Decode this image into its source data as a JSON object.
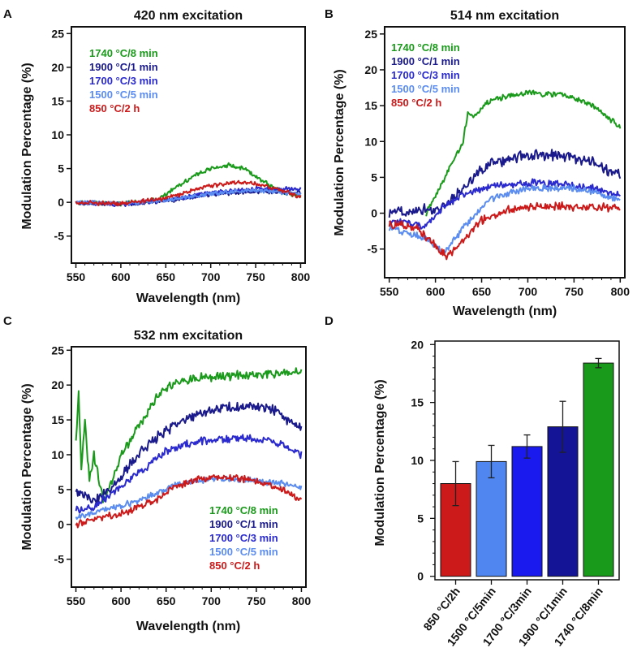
{
  "chart_data": [
    {
      "panel": "A",
      "type": "line",
      "title": "420 nm excitation",
      "xlabel": "Wavelength (nm)",
      "ylabel": "Modulation Percentage (%)",
      "xlim": [
        545,
        805
      ],
      "ylim": [
        -9,
        26
      ],
      "xticks": [
        550,
        600,
        650,
        700,
        750,
        800
      ],
      "yticks": [
        -5,
        0,
        5,
        10,
        15,
        20,
        25
      ],
      "legend": [
        "1740 °C/8 min",
        "1900 °C/1 min",
        "1700 °C/3 min",
        "1500 °C/5 min",
        "850 °C/2 h"
      ],
      "legend_position": "top-left",
      "series": [
        {
          "name": "1740 °C/8 min",
          "color": "#1a9a1a",
          "noise": 0.25,
          "x": [
            550,
            600,
            640,
            660,
            680,
            700,
            720,
            740,
            760,
            780,
            800
          ],
          "y": [
            0,
            -0.2,
            0.3,
            2.2,
            3.8,
            5.0,
            5.5,
            4.8,
            3.0,
            1.4,
            1.0
          ]
        },
        {
          "name": "1900 °C/1 min",
          "color": "#1a1a8c",
          "noise": 0.25,
          "x": [
            550,
            600,
            650,
            700,
            750,
            800
          ],
          "y": [
            0,
            -0.3,
            0.2,
            1.2,
            1.6,
            1.5
          ]
        },
        {
          "name": "1700 °C/3 min",
          "color": "#2a2acf",
          "noise": 0.25,
          "x": [
            550,
            600,
            650,
            700,
            750,
            800
          ],
          "y": [
            0,
            -0.3,
            0.3,
            1.4,
            2.0,
            2.0
          ]
        },
        {
          "name": "1500 °C/5 min",
          "color": "#5b8cf0",
          "noise": 0.25,
          "x": [
            550,
            600,
            650,
            700,
            750,
            800
          ],
          "y": [
            0,
            -0.2,
            0.3,
            1.3,
            1.8,
            1.2
          ]
        },
        {
          "name": "850 °C/2 h",
          "color": "#cc1a1a",
          "noise": 0.25,
          "x": [
            550,
            600,
            650,
            700,
            730,
            760,
            800
          ],
          "y": [
            0,
            -0.2,
            0.6,
            2.5,
            3.0,
            2.5,
            0.8
          ]
        }
      ]
    },
    {
      "panel": "B",
      "type": "line",
      "title": "514 nm excitation",
      "xlabel": "Wavelength (nm)",
      "ylabel": "Modulation Percentage (%)",
      "xlim": [
        545,
        805
      ],
      "ylim": [
        -9,
        26
      ],
      "xticks": [
        550,
        600,
        650,
        700,
        750,
        800
      ],
      "yticks": [
        -5,
        0,
        5,
        10,
        15,
        20,
        25
      ],
      "legend": [
        "1740 °C/8 min",
        "1900 °C/1 min",
        "1700 °C/3 min",
        "1500 °C/5 min",
        "850 °C/2 h"
      ],
      "legend_position": "top-left",
      "series": [
        {
          "name": "1740 °C/8 min",
          "color": "#1a9a1a",
          "noise": 0.3,
          "x": [
            590,
            610,
            630,
            635,
            640,
            660,
            700,
            740,
            770,
            800
          ],
          "y": [
            0,
            5,
            10,
            14,
            13.5,
            15.8,
            16.8,
            16.5,
            15.0,
            12.0
          ]
        },
        {
          "name": "1900 °C/1 min",
          "color": "#1a1a8c",
          "noise": 0.6,
          "x": [
            550,
            580,
            600,
            620,
            640,
            660,
            700,
            740,
            770,
            800
          ],
          "y": [
            0,
            0.6,
            0.5,
            2.0,
            5.0,
            7.0,
            8.1,
            8.0,
            7.0,
            5.2
          ]
        },
        {
          "name": "1700 °C/3 min",
          "color": "#2a2acf",
          "noise": 0.4,
          "x": [
            550,
            590,
            610,
            630,
            660,
            700,
            740,
            770,
            800
          ],
          "y": [
            -1.0,
            -1.8,
            1.0,
            2.5,
            3.8,
            4.2,
            4.0,
            3.5,
            2.6
          ]
        },
        {
          "name": "1500 °C/5 min",
          "color": "#5b8cf0",
          "noise": 0.35,
          "x": [
            550,
            590,
            610,
            630,
            660,
            700,
            750,
            800
          ],
          "y": [
            -2.0,
            -3.5,
            -5.5,
            -2.0,
            2.0,
            3.5,
            3.5,
            2.0
          ]
        },
        {
          "name": "850 °C/2 h",
          "color": "#cc1a1a",
          "noise": 0.45,
          "x": [
            550,
            580,
            600,
            612,
            625,
            650,
            680,
            720,
            800
          ],
          "y": [
            -1.5,
            -2.0,
            -4.5,
            -6.0,
            -4.5,
            -1.0,
            0.5,
            1.0,
            0.7
          ]
        }
      ]
    },
    {
      "panel": "C",
      "type": "line",
      "title": "532 nm excitation",
      "xlabel": "Wavelength (nm)",
      "ylabel": "Modulation Percentage (%)",
      "xlim": [
        545,
        805
      ],
      "ylim": [
        -9,
        25.5
      ],
      "xticks": [
        550,
        600,
        650,
        700,
        750,
        800
      ],
      "yticks": [
        -5,
        0,
        5,
        10,
        15,
        20,
        25
      ],
      "legend": [
        "1740 °C/8 min",
        "1900 °C/1 min",
        "1700 °C/3 min",
        "1500 °C/5 min",
        "850 °C/2 h"
      ],
      "legend_position": "bottom-right",
      "series": [
        {
          "name": "1740 °C/8 min",
          "color": "#1a9a1a",
          "noise": 0.5,
          "x": [
            550,
            553,
            556,
            560,
            565,
            570,
            580,
            590,
            600,
            620,
            640,
            660,
            700,
            750,
            800
          ],
          "y": [
            12,
            19,
            8,
            15,
            6,
            10,
            3.5,
            6,
            10,
            14,
            18.5,
            20.5,
            21.2,
            21.5,
            21.8
          ]
        },
        {
          "name": "1900 °C/1 min",
          "color": "#1a1a8c",
          "noise": 0.6,
          "x": [
            550,
            570,
            590,
            610,
            630,
            650,
            680,
            700,
            740,
            770,
            800
          ],
          "y": [
            5,
            3,
            5.5,
            8.5,
            11.5,
            13.5,
            15.5,
            16.5,
            17.0,
            16.5,
            13.5
          ]
        },
        {
          "name": "1700 °C/3 min",
          "color": "#2a2acf",
          "noise": 0.45,
          "x": [
            550,
            570,
            600,
            630,
            650,
            680,
            700,
            740,
            770,
            800
          ],
          "y": [
            2,
            2.5,
            5.5,
            8.5,
            10.5,
            11.8,
            12.2,
            12.4,
            12.0,
            10.0
          ]
        },
        {
          "name": "1500 °C/5 min",
          "color": "#5b8cf0",
          "noise": 0.35,
          "x": [
            550,
            580,
            610,
            640,
            660,
            700,
            750,
            800
          ],
          "y": [
            1.0,
            2.0,
            3.0,
            4.5,
            5.8,
            6.5,
            6.3,
            5.5
          ]
        },
        {
          "name": "850 °C/2 h",
          "color": "#cc1a1a",
          "noise": 0.4,
          "x": [
            550,
            580,
            610,
            640,
            660,
            700,
            740,
            770,
            800
          ],
          "y": [
            0,
            1.0,
            2.0,
            3.5,
            5.5,
            6.8,
            6.5,
            5.5,
            3.5
          ]
        }
      ]
    },
    {
      "panel": "D",
      "type": "bar",
      "xlabel": "",
      "ylabel": "Modulation Percentage (%)",
      "ylim": [
        -0.3,
        20.3
      ],
      "yticks": [
        0,
        5,
        10,
        15,
        20
      ],
      "categories": [
        "850 °C/2h",
        "1500 °C/5min",
        "1700 °C/3min",
        "1900 °C/1min",
        "1740 °C/8min"
      ],
      "values": [
        8.0,
        9.9,
        11.2,
        12.9,
        18.4
      ],
      "errors": [
        1.9,
        1.4,
        1.0,
        2.2,
        0.4
      ],
      "colors": [
        "#cc1a1a",
        "#4f86f0",
        "#1a1aee",
        "#141496",
        "#1a9a1a"
      ]
    }
  ]
}
